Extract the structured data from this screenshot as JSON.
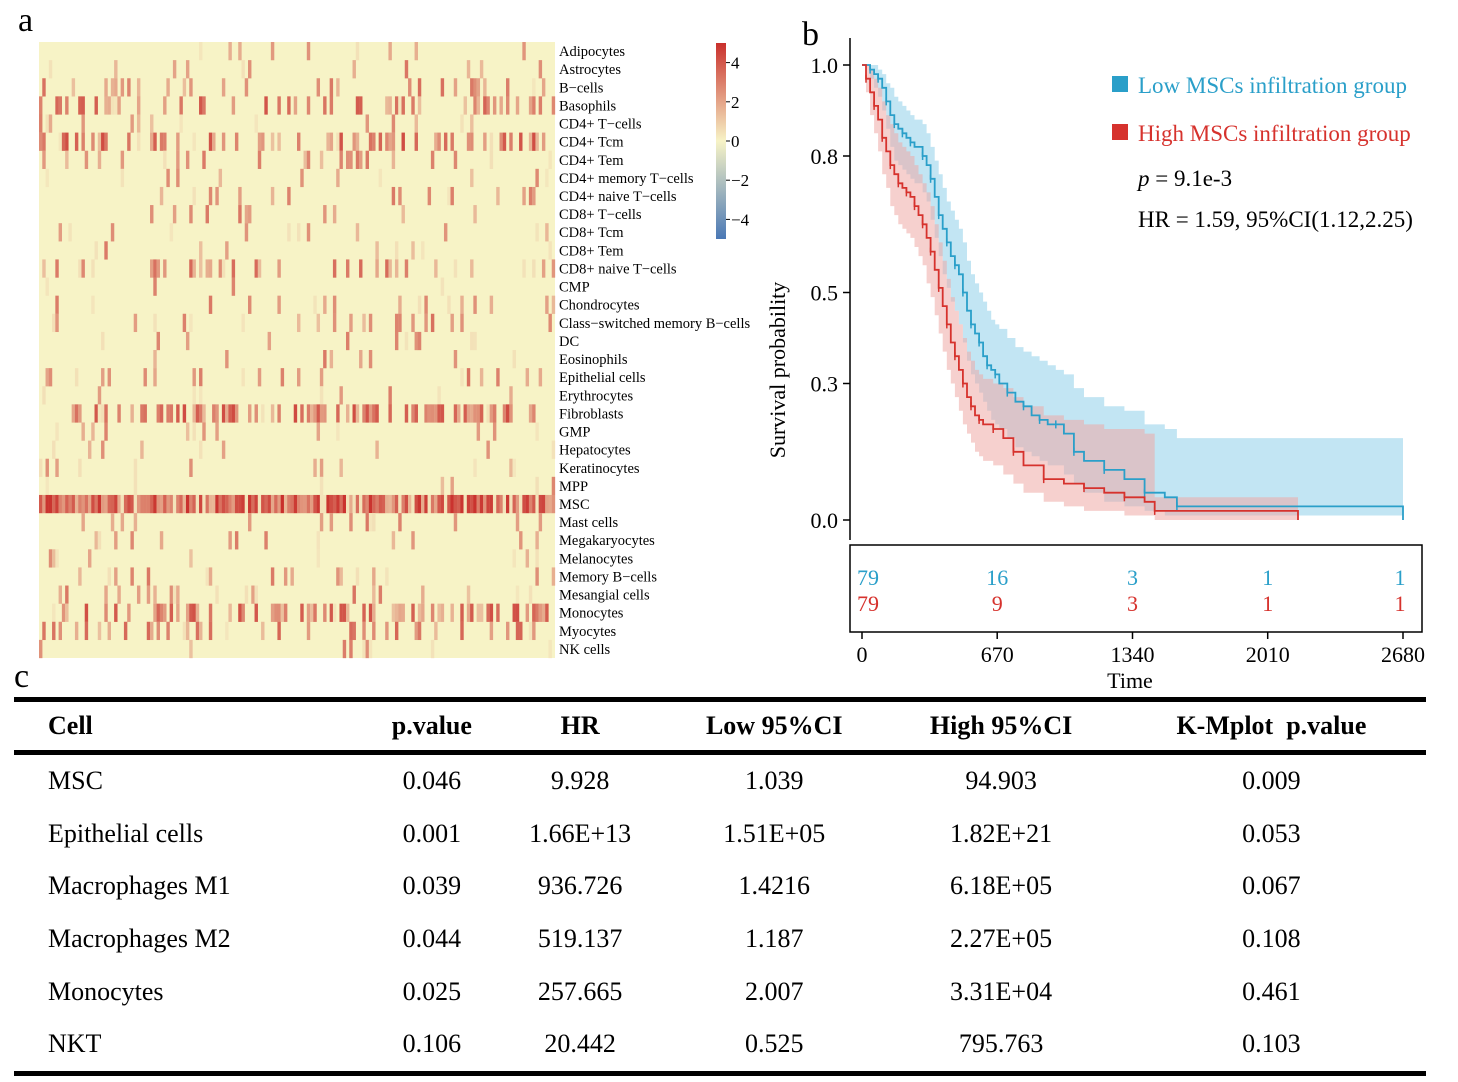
{
  "panels": {
    "a": "a",
    "b": "b",
    "c": "c"
  },
  "chart_data": [
    {
      "type": "heatmap",
      "panel": "a",
      "rows": [
        "Adipocytes",
        "Astrocytes",
        "B−cells",
        "Basophils",
        "CD4+ T−cells",
        "CD4+ Tcm",
        "CD4+ Tem",
        "CD4+ memory T−cells",
        "CD4+ naive T−cells",
        "CD8+ T−cells",
        "CD8+ Tcm",
        "CD8+ Tem",
        "CD8+ naive T−cells",
        "CMP",
        "Chondrocytes",
        "Class−switched memory B−cells",
        "DC",
        "Eosinophils",
        "Epithelial cells",
        "Erythrocytes",
        "Fibroblasts",
        "GMP",
        "Hepatocytes",
        "Keratinocytes",
        "MPP",
        "MSC",
        "Mast cells",
        "Megakaryocytes",
        "Melanocytes",
        "Memory B−cells",
        "Mesangial cells",
        "Monocytes",
        "Myocytes",
        "NK cells"
      ],
      "row_intensity": [
        0.05,
        0.06,
        0.14,
        0.32,
        0.04,
        0.38,
        0.07,
        0.05,
        0.07,
        0.06,
        0.04,
        0.04,
        0.16,
        0.03,
        0.07,
        0.11,
        0.04,
        0.07,
        0.1,
        0.05,
        0.4,
        0.03,
        0.03,
        0.03,
        0.03,
        1.0,
        0.05,
        0.04,
        0.04,
        0.05,
        0.12,
        0.36,
        0.2,
        0.05
      ],
      "n_samples": 158,
      "colorbar": {
        "ticks": [
          "4",
          "2",
          "0",
          "−2",
          "−4"
        ],
        "range": [
          -5,
          5
        ]
      },
      "colors": {
        "low": "#4a78b5",
        "mid": "#f7f3c6",
        "high": "#c9302c"
      }
    },
    {
      "type": "line",
      "panel": "b",
      "xlabel": "Time",
      "ylabel": "Survival probability",
      "xlim": [
        0,
        2700
      ],
      "ylim": [
        0,
        1.0
      ],
      "x_ticks": [
        "0",
        "670",
        "1340",
        "2010",
        "2680"
      ],
      "x_tick_values": [
        0,
        670,
        1340,
        2010,
        2680
      ],
      "y_ticks": [
        "1.0",
        "0.8",
        "0.5",
        "0.3",
        "0.0"
      ],
      "y_tick_values": [
        1.0,
        0.8,
        0.5,
        0.3,
        0.0
      ],
      "p_label": "p",
      "p_value": " = 9.1e-3",
      "hr_text": "HR = 1.59,  95%CI(1.12,2.25)",
      "series": [
        {
          "name": "Low MSCs infiltration group",
          "color": "#2a9fc9",
          "band_color": "#8fd0ea",
          "x": [
            0,
            40,
            60,
            80,
            100,
            120,
            140,
            160,
            180,
            200,
            220,
            240,
            260,
            300,
            320,
            340,
            360,
            380,
            400,
            420,
            440,
            460,
            480,
            500,
            520,
            540,
            560,
            580,
            600,
            620,
            640,
            660,
            680,
            720,
            760,
            800,
            840,
            880,
            920,
            960,
            1000,
            1050,
            1100,
            1200,
            1300,
            1400,
            1500,
            1560,
            2680
          ],
          "y": [
            1.0,
            0.99,
            0.98,
            0.97,
            0.95,
            0.92,
            0.89,
            0.87,
            0.86,
            0.85,
            0.84,
            0.83,
            0.82,
            0.8,
            0.78,
            0.75,
            0.71,
            0.67,
            0.64,
            0.61,
            0.58,
            0.56,
            0.54,
            0.5,
            0.46,
            0.43,
            0.41,
            0.39,
            0.36,
            0.34,
            0.33,
            0.32,
            0.3,
            0.28,
            0.26,
            0.25,
            0.23,
            0.22,
            0.21,
            0.21,
            0.19,
            0.15,
            0.13,
            0.11,
            0.09,
            0.06,
            0.05,
            0.03,
            0.0
          ],
          "upper": [
            1.0,
            1.0,
            1.0,
            0.99,
            0.98,
            0.96,
            0.95,
            0.93,
            0.92,
            0.91,
            0.9,
            0.89,
            0.88,
            0.87,
            0.85,
            0.82,
            0.79,
            0.76,
            0.73,
            0.7,
            0.68,
            0.66,
            0.64,
            0.61,
            0.57,
            0.54,
            0.52,
            0.5,
            0.48,
            0.46,
            0.44,
            0.43,
            0.42,
            0.4,
            0.38,
            0.37,
            0.36,
            0.35,
            0.34,
            0.33,
            0.32,
            0.29,
            0.27,
            0.25,
            0.24,
            0.21,
            0.2,
            0.18,
            0.18
          ],
          "lower": [
            1.0,
            0.97,
            0.95,
            0.93,
            0.9,
            0.86,
            0.82,
            0.79,
            0.78,
            0.77,
            0.76,
            0.75,
            0.74,
            0.72,
            0.7,
            0.66,
            0.62,
            0.58,
            0.54,
            0.51,
            0.48,
            0.46,
            0.43,
            0.39,
            0.35,
            0.32,
            0.3,
            0.28,
            0.26,
            0.24,
            0.22,
            0.21,
            0.2,
            0.18,
            0.16,
            0.15,
            0.14,
            0.13,
            0.12,
            0.12,
            0.1,
            0.08,
            0.06,
            0.04,
            0.03,
            0.02,
            0.01,
            0.01,
            0.01
          ],
          "at_risk": [
            "79",
            "16",
            "3",
            "1",
            "1"
          ]
        },
        {
          "name": "High MSCs infiltration group",
          "color": "#d6322d",
          "band_color": "#eea9a6",
          "x": [
            0,
            20,
            40,
            60,
            80,
            100,
            120,
            140,
            160,
            180,
            200,
            220,
            240,
            260,
            280,
            300,
            320,
            340,
            360,
            380,
            400,
            420,
            440,
            460,
            480,
            500,
            520,
            540,
            560,
            580,
            600,
            650,
            700,
            750,
            800,
            900,
            1000,
            1100,
            1200,
            1300,
            1400,
            1450,
            2160
          ],
          "y": [
            1.0,
            0.97,
            0.94,
            0.91,
            0.88,
            0.84,
            0.81,
            0.78,
            0.76,
            0.74,
            0.73,
            0.72,
            0.71,
            0.69,
            0.67,
            0.65,
            0.62,
            0.59,
            0.55,
            0.51,
            0.47,
            0.43,
            0.39,
            0.36,
            0.33,
            0.3,
            0.27,
            0.25,
            0.23,
            0.22,
            0.21,
            0.2,
            0.18,
            0.15,
            0.12,
            0.09,
            0.08,
            0.07,
            0.06,
            0.05,
            0.04,
            0.02,
            0.0
          ],
          "upper": [
            1.0,
            1.0,
            0.99,
            0.97,
            0.95,
            0.92,
            0.89,
            0.87,
            0.85,
            0.83,
            0.82,
            0.81,
            0.8,
            0.78,
            0.76,
            0.74,
            0.72,
            0.69,
            0.65,
            0.61,
            0.57,
            0.53,
            0.49,
            0.46,
            0.43,
            0.4,
            0.37,
            0.35,
            0.33,
            0.32,
            0.31,
            0.3,
            0.29,
            0.27,
            0.25,
            0.23,
            0.22,
            0.21,
            0.2,
            0.2,
            0.19,
            0.05,
            0.0
          ],
          "lower": [
            1.0,
            0.94,
            0.89,
            0.85,
            0.81,
            0.76,
            0.73,
            0.69,
            0.67,
            0.65,
            0.64,
            0.63,
            0.62,
            0.6,
            0.58,
            0.56,
            0.52,
            0.49,
            0.45,
            0.41,
            0.37,
            0.33,
            0.3,
            0.27,
            0.24,
            0.21,
            0.19,
            0.17,
            0.15,
            0.14,
            0.13,
            0.12,
            0.1,
            0.08,
            0.06,
            0.04,
            0.03,
            0.02,
            0.02,
            0.01,
            0.01,
            0.0,
            0.0
          ],
          "at_risk": [
            "79",
            "9",
            "3",
            "1",
            "1"
          ]
        }
      ]
    },
    {
      "type": "table",
      "panel": "c",
      "columns": [
        "Cell",
        "p.value",
        "HR",
        "Low 95%CI",
        "High 95%CI",
        "K-Mplot  p.value"
      ],
      "rows": [
        [
          "MSC",
          "0.046",
          "9.928",
          "1.039",
          "94.903",
          "0.009"
        ],
        [
          "Epithelial cells",
          "0.001",
          "1.66E+13",
          "1.51E+05",
          "1.82E+21",
          "0.053"
        ],
        [
          "Macrophages M1",
          "0.039",
          "936.726",
          "1.4216",
          "6.18E+05",
          "0.067"
        ],
        [
          "Macrophages M2",
          "0.044",
          "519.137",
          "1.187",
          "2.27E+05",
          "0.108"
        ],
        [
          "Monocytes",
          "0.025",
          "257.665",
          "2.007",
          "3.31E+04",
          "0.461"
        ],
        [
          "NKT",
          "0.106",
          "20.442",
          "0.525",
          "795.763",
          "0.103"
        ]
      ]
    }
  ]
}
